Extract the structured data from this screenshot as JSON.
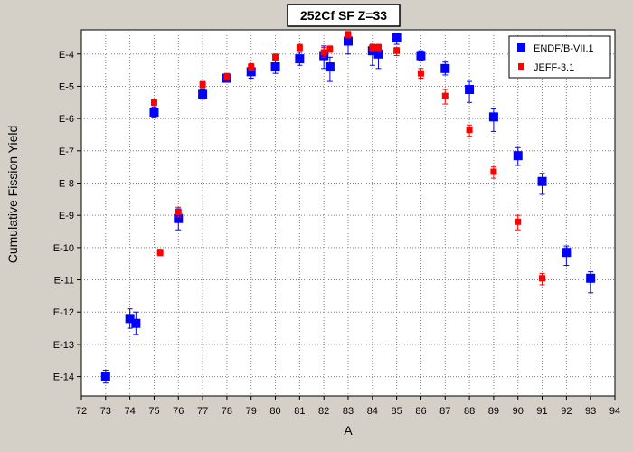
{
  "chart_data": {
    "type": "scatter",
    "title": "252Cf SF Z=33",
    "xlabel": "A",
    "ylabel": "Cumulative Fission Yield",
    "xlim": [
      72,
      94
    ],
    "ylog": true,
    "ylim_exponent": [
      -14.6,
      -3.25
    ],
    "x_ticks": [
      72,
      73,
      74,
      75,
      76,
      77,
      78,
      79,
      80,
      81,
      82,
      83,
      84,
      85,
      86,
      87,
      88,
      89,
      90,
      91,
      92,
      93,
      94
    ],
    "y_ticks": [
      {
        "label": "E-4",
        "exp": -4
      },
      {
        "label": "E-5",
        "exp": -5
      },
      {
        "label": "E-6",
        "exp": -6
      },
      {
        "label": "E-7",
        "exp": -7
      },
      {
        "label": "E-8",
        "exp": -8
      },
      {
        "label": "E-9",
        "exp": -9
      },
      {
        "label": "E-10",
        "exp": -10
      },
      {
        "label": "E-11",
        "exp": -11
      },
      {
        "label": "E-12",
        "exp": -12
      },
      {
        "label": "E-13",
        "exp": -13
      },
      {
        "label": "E-14",
        "exp": -14
      }
    ],
    "grid": true,
    "legend_position": "top-right",
    "series": [
      {
        "name": "ENDF/B-VII.1",
        "color": "#0000ff",
        "marker": "square",
        "points": [
          {
            "x": 73.0,
            "exp": -14.0,
            "err_lo": -14.2,
            "err_hi": -13.8
          },
          {
            "x": 74.0,
            "exp": -12.2,
            "err_lo": -12.5,
            "err_hi": -11.9
          },
          {
            "x": 74.25,
            "exp": -12.35,
            "err_lo": -12.7,
            "err_hi": -12.0
          },
          {
            "x": 75.0,
            "exp": -5.8,
            "err_lo": -5.95,
            "err_hi": -5.65
          },
          {
            "x": 76.0,
            "exp": -9.1,
            "err_lo": -9.45,
            "err_hi": -8.8
          },
          {
            "x": 77.0,
            "exp": -5.25,
            "err_lo": -5.4,
            "err_hi": -5.1
          },
          {
            "x": 78.0,
            "exp": -4.75,
            "err_lo": -4.85,
            "err_hi": -4.65
          },
          {
            "x": 79.0,
            "exp": -4.55,
            "err_lo": -4.75,
            "err_hi": -4.35
          },
          {
            "x": 80.0,
            "exp": -4.4,
            "err_lo": -4.6,
            "err_hi": -4.2
          },
          {
            "x": 81.0,
            "exp": -4.15,
            "err_lo": -4.35,
            "err_hi": -3.95
          },
          {
            "x": 82.0,
            "exp": -4.05,
            "err_lo": -4.45,
            "err_hi": -3.75
          },
          {
            "x": 82.25,
            "exp": -4.4,
            "err_lo": -4.85,
            "err_hi": -4.1
          },
          {
            "x": 83.0,
            "exp": -3.6,
            "err_lo": -4.0,
            "err_hi": -3.45
          },
          {
            "x": 84.0,
            "exp": -3.9,
            "err_lo": -4.35,
            "err_hi": -3.7
          },
          {
            "x": 84.25,
            "exp": -4.0,
            "err_lo": -4.45,
            "err_hi": -3.75
          },
          {
            "x": 85.0,
            "exp": -3.5,
            "err_lo": -3.7,
            "err_hi": -3.35
          },
          {
            "x": 86.0,
            "exp": -4.05,
            "err_lo": -4.2,
            "err_hi": -3.9
          },
          {
            "x": 87.0,
            "exp": -4.45,
            "err_lo": -4.65,
            "err_hi": -4.25
          },
          {
            "x": 88.0,
            "exp": -5.1,
            "err_lo": -5.5,
            "err_hi": -4.85
          },
          {
            "x": 89.0,
            "exp": -5.95,
            "err_lo": -6.4,
            "err_hi": -5.7
          },
          {
            "x": 90.0,
            "exp": -7.15,
            "err_lo": -7.45,
            "err_hi": -6.9
          },
          {
            "x": 91.0,
            "exp": -7.95,
            "err_lo": -8.35,
            "err_hi": -7.7
          },
          {
            "x": 92.0,
            "exp": -10.15,
            "err_lo": -10.55,
            "err_hi": -9.95
          },
          {
            "x": 93.0,
            "exp": -10.95,
            "err_lo": -11.4,
            "err_hi": -10.75
          }
        ]
      },
      {
        "name": "JEFF-3.1",
        "color": "#ff0000",
        "marker": "square",
        "points": [
          {
            "x": 75.0,
            "exp": -5.5,
            "err_lo": -5.6,
            "err_hi": -5.4
          },
          {
            "x": 75.25,
            "exp": -10.15,
            "err_lo": -10.25,
            "err_hi": -10.05
          },
          {
            "x": 76.0,
            "exp": -8.9,
            "err_lo": -9.05,
            "err_hi": -8.75
          },
          {
            "x": 77.0,
            "exp": -4.95,
            "err_lo": -5.05,
            "err_hi": -4.85
          },
          {
            "x": 78.0,
            "exp": -4.7,
            "err_lo": -4.8,
            "err_hi": -4.6
          },
          {
            "x": 79.0,
            "exp": -4.4,
            "err_lo": -4.5,
            "err_hi": -4.3
          },
          {
            "x": 80.0,
            "exp": -4.1,
            "err_lo": -4.2,
            "err_hi": -4.0
          },
          {
            "x": 81.0,
            "exp": -3.8,
            "err_lo": -3.9,
            "err_hi": -3.7
          },
          {
            "x": 82.0,
            "exp": -3.95,
            "err_lo": -4.1,
            "err_hi": -3.8
          },
          {
            "x": 82.25,
            "exp": -3.85,
            "err_lo": -3.95,
            "err_hi": -3.75
          },
          {
            "x": 83.0,
            "exp": -3.4,
            "err_lo": -3.5,
            "err_hi": -3.3
          },
          {
            "x": 84.0,
            "exp": -3.8,
            "err_lo": -3.9,
            "err_hi": -3.7
          },
          {
            "x": 84.25,
            "exp": -3.8,
            "err_lo": -3.9,
            "err_hi": -3.7
          },
          {
            "x": 85.0,
            "exp": -3.9,
            "err_lo": -4.05,
            "err_hi": -3.8
          },
          {
            "x": 86.0,
            "exp": -4.6,
            "err_lo": -4.75,
            "err_hi": -4.45
          },
          {
            "x": 87.0,
            "exp": -5.3,
            "err_lo": -5.55,
            "err_hi": -5.1
          },
          {
            "x": 88.0,
            "exp": -6.35,
            "err_lo": -6.55,
            "err_hi": -6.2
          },
          {
            "x": 89.0,
            "exp": -7.65,
            "err_lo": -7.85,
            "err_hi": -7.5
          },
          {
            "x": 90.0,
            "exp": -9.2,
            "err_lo": -9.45,
            "err_hi": -9.0
          },
          {
            "x": 91.0,
            "exp": -10.95,
            "err_lo": -11.15,
            "err_hi": -10.8
          }
        ]
      }
    ]
  }
}
